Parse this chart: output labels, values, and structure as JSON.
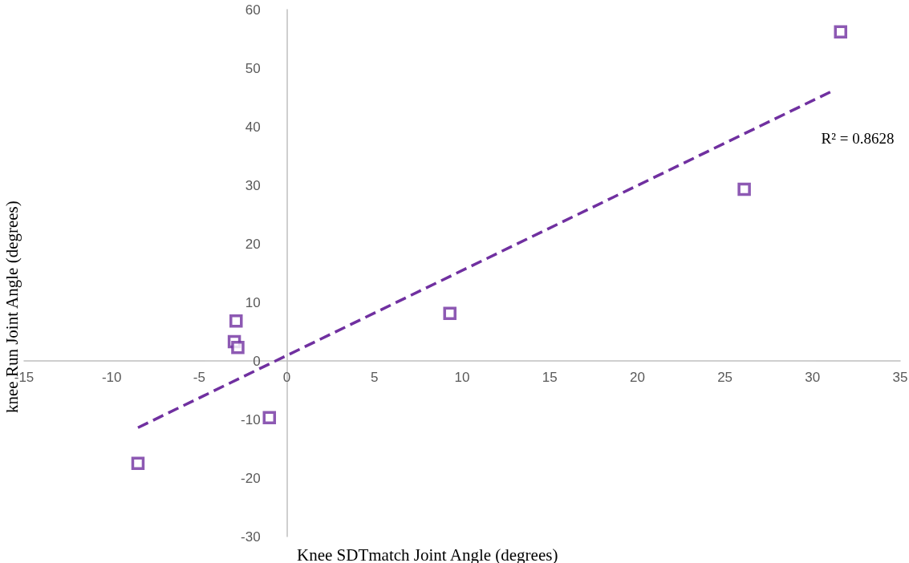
{
  "chart_data": {
    "type": "scatter",
    "xlabel": "Knee SDTmatch Joint Angle (degrees)",
    "ylabel": "knee Run Joint Angle (degrees)",
    "xlim": [
      -15,
      35
    ],
    "xticks": [
      -15,
      -10,
      -5,
      0,
      5,
      10,
      15,
      20,
      25,
      30,
      35
    ],
    "ylim": [
      -30,
      60
    ],
    "yticks": [
      -30,
      -20,
      -10,
      0,
      10,
      20,
      30,
      40,
      50,
      60
    ],
    "grid": false,
    "marker": "square",
    "series": [
      {
        "color": "#7030a0",
        "x": [
          -8.5,
          -2.9,
          -3.0,
          -2.8,
          -1.0,
          9.3,
          26.1,
          31.6
        ],
        "values": [
          -17.5,
          6.8,
          3.3,
          2.3,
          -9.7,
          8.1,
          29.3,
          56.2
        ]
      },
      {
        "type": "line",
        "color": "#7030a0",
        "line_style": "dashed",
        "marker": "none",
        "x": [
          -8.5,
          31.2
        ],
        "values": [
          -11.4,
          46.2
        ]
      }
    ],
    "annotations": [
      "R² = 0.8628"
    ]
  }
}
